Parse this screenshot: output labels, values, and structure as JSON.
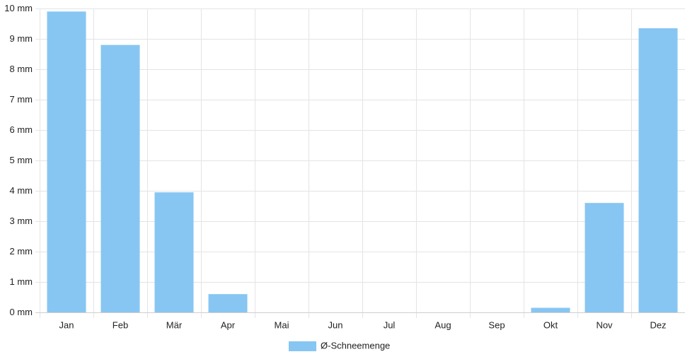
{
  "chart_data": {
    "type": "bar",
    "categories": [
      "Jan",
      "Feb",
      "Mär",
      "Apr",
      "Mai",
      "Jun",
      "Jul",
      "Aug",
      "Sep",
      "Okt",
      "Nov",
      "Dez"
    ],
    "series": [
      {
        "name": "Ø-Schneemenge",
        "color": "#87c6f2",
        "values": [
          9.9,
          8.8,
          3.95,
          0.6,
          0,
          0,
          0,
          0,
          0,
          0.15,
          3.6,
          9.35
        ]
      }
    ],
    "ylim": [
      0,
      10
    ],
    "yticks": [
      {
        "value": 0,
        "label": "0 mm"
      },
      {
        "value": 1,
        "label": "1 mm"
      },
      {
        "value": 2,
        "label": "2 mm"
      },
      {
        "value": 3,
        "label": "3 mm"
      },
      {
        "value": 4,
        "label": "4 mm"
      },
      {
        "value": 5,
        "label": "5 mm"
      },
      {
        "value": 6,
        "label": "6 mm"
      },
      {
        "value": 7,
        "label": "7 mm"
      },
      {
        "value": 8,
        "label": "8 mm"
      },
      {
        "value": 9,
        "label": "9 mm"
      },
      {
        "value": 10,
        "label": "10 mm"
      }
    ],
    "grid": true,
    "legend": "bottom"
  }
}
